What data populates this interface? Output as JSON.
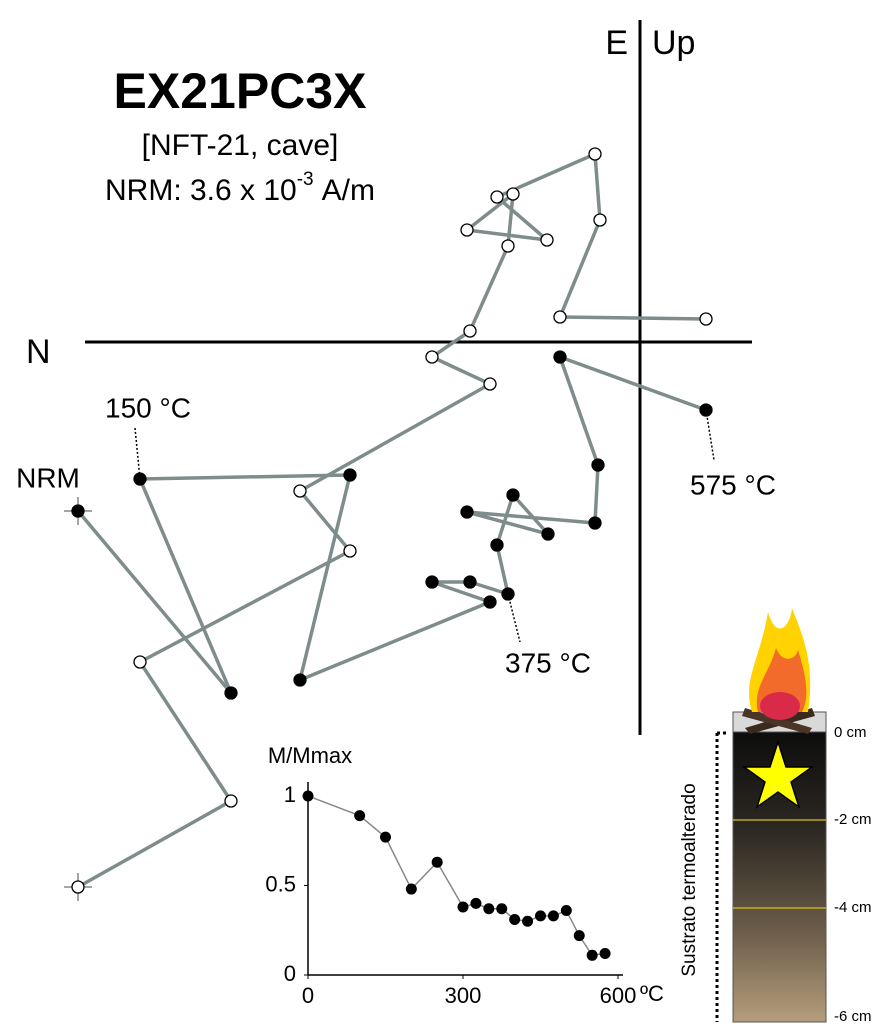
{
  "header": {
    "title": "EX21PC3X",
    "subtitle": "[NFT-21, cave]",
    "intensity": {
      "prefix": "NRM:  3.6 x 10",
      "exponent": "-3",
      "unit": "A/m"
    }
  },
  "chart_data": [
    {
      "type": "zijderveld",
      "axis_labels": {
        "east": "E",
        "up": "Up",
        "north": "N"
      },
      "xlim": [
        -6.2,
        1.2
      ],
      "ylim": [
        -5.5,
        3.2
      ],
      "line_color": "#7f8c8c",
      "series": [
        {
          "marker": "filled",
          "color": "#000000",
          "x": [
            -5.62,
            -4.09,
            -5.0,
            -2.9,
            -3.4,
            -1.5,
            -2.08,
            -1.7,
            -1.32,
            -1.43,
            -1.27,
            -0.92,
            -1.73,
            -0.45,
            -0.42,
            -0.8,
            0.66
          ],
          "values": [
            -1.69,
            -3.51,
            -1.37,
            -1.33,
            -3.38,
            -2.6,
            -2.4,
            -2.4,
            -2.52,
            -2.03,
            -1.53,
            -1.92,
            -1.7,
            -1.81,
            -1.23,
            -0.15,
            -0.68
          ]
        },
        {
          "marker": "open",
          "color": "#000000",
          "x": [
            -5.62,
            -4.09,
            -5.0,
            -2.9,
            -3.4,
            -1.5,
            -2.08,
            -1.7,
            -1.32,
            -1.27,
            -1.73,
            -0.93,
            -1.43,
            -0.45,
            -0.4,
            -0.8,
            0.66
          ],
          "values": [
            -5.45,
            -4.59,
            -3.2,
            -2.09,
            -1.49,
            -0.42,
            -0.15,
            0.11,
            0.96,
            1.48,
            1.12,
            1.02,
            1.45,
            1.88,
            1.22,
            0.25,
            0.23
          ]
        }
      ],
      "annotations": [
        "150 °C",
        "NRM",
        "575 °C",
        "375 °C"
      ]
    },
    {
      "type": "line",
      "y_label": "M/Mmax",
      "x_label": "ºC",
      "x": [
        0,
        100,
        150,
        200,
        250,
        300,
        325,
        350,
        375,
        400,
        425,
        450,
        475,
        500,
        525,
        550,
        575
      ],
      "values": [
        1,
        0.89,
        0.77,
        0.48,
        0.63,
        0.38,
        0.4,
        0.37,
        0.37,
        0.31,
        0.3,
        0.33,
        0.33,
        0.36,
        0.22,
        0.11,
        0.12
      ],
      "color": "#888888",
      "marker_color": "#000000",
      "xlim": [
        0,
        600
      ],
      "xticks": [
        0,
        300,
        600
      ],
      "ylim": [
        0,
        1.05
      ],
      "yticks": [
        0,
        0.5,
        1
      ]
    }
  ],
  "column": {
    "depth_labels": [
      "0 cm",
      "-2 cm",
      "-4 cm",
      "-6 cm"
    ],
    "label": "Sustrato termoalterado"
  }
}
